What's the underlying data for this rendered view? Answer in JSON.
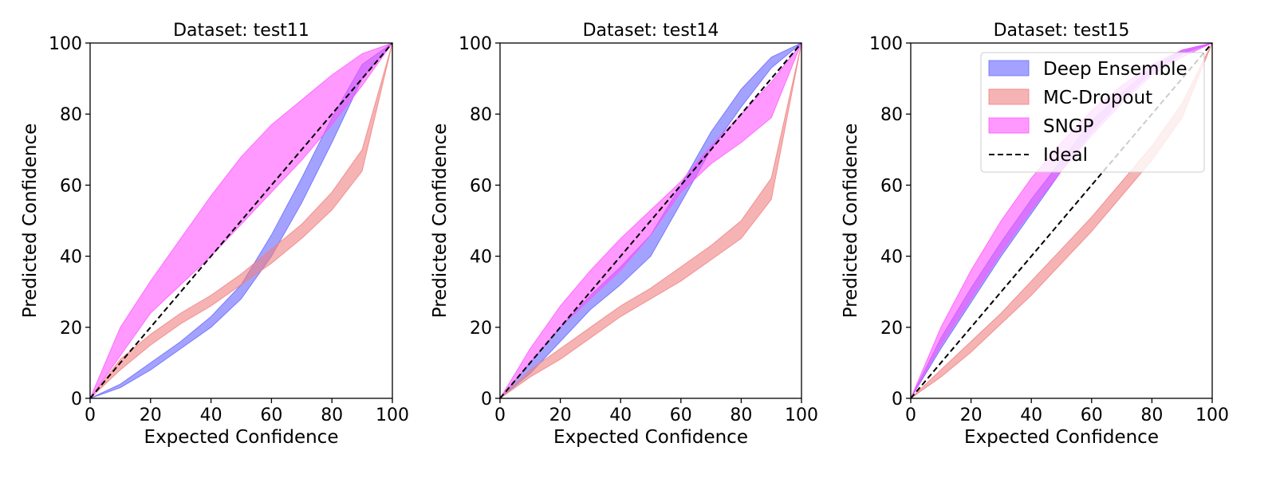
{
  "chart_data": [
    {
      "type": "area",
      "title": "Dataset: test11",
      "xlabel": "Expected Confidence",
      "ylabel": "Predicted Confidence",
      "xlim": [
        0,
        100
      ],
      "ylim": [
        0,
        100
      ],
      "xticks": [
        "0",
        "20",
        "40",
        "60",
        "80",
        "100"
      ],
      "yticks": [
        "0",
        "20",
        "40",
        "60",
        "80",
        "100"
      ],
      "grid": false,
      "legend": false,
      "x": [
        0,
        10,
        20,
        30,
        40,
        50,
        60,
        70,
        80,
        90,
        100
      ],
      "series": [
        {
          "name": "Deep Ensemble",
          "color": "#6666ff",
          "lower": [
            0,
            3,
            8,
            14,
            20,
            28,
            40,
            55,
            72,
            90,
            100
          ],
          "upper": [
            0,
            4,
            10,
            16,
            23,
            32,
            46,
            62,
            79,
            94,
            100
          ]
        },
        {
          "name": "MC-Dropout",
          "color": "#f08080",
          "lower": [
            0,
            8,
            15,
            21,
            26,
            32,
            38,
            45,
            53,
            64,
            100
          ],
          "upper": [
            0,
            11,
            18,
            24,
            29,
            35,
            42,
            49,
            58,
            70,
            100
          ]
        },
        {
          "name": "SNGP",
          "color": "#ff55ff",
          "lower": [
            0,
            12,
            24,
            32,
            40,
            49,
            58,
            67,
            77,
            88,
            100
          ],
          "upper": [
            0,
            20,
            33,
            45,
            57,
            68,
            77,
            84,
            91,
            97,
            100
          ]
        }
      ],
      "ideal": {
        "name": "Ideal",
        "x": [
          0,
          100
        ],
        "y": [
          0,
          100
        ]
      }
    },
    {
      "type": "area",
      "title": "Dataset: test14",
      "xlabel": "Expected Confidence",
      "ylabel": "Predicted Confidence",
      "xlim": [
        0,
        100
      ],
      "ylim": [
        0,
        100
      ],
      "xticks": [
        "0",
        "20",
        "40",
        "60",
        "80",
        "100"
      ],
      "yticks": [
        "0",
        "20",
        "40",
        "60",
        "80",
        "100"
      ],
      "grid": false,
      "legend": false,
      "x": [
        0,
        10,
        20,
        30,
        40,
        50,
        60,
        70,
        80,
        90,
        100
      ],
      "series": [
        {
          "name": "Deep Ensemble",
          "color": "#6666ff",
          "lower": [
            0,
            7,
            16,
            25,
            32,
            40,
            55,
            70,
            82,
            93,
            100
          ],
          "upper": [
            0,
            10,
            20,
            29,
            37,
            46,
            60,
            75,
            87,
            96,
            100
          ]
        },
        {
          "name": "MC-Dropout",
          "color": "#f08080",
          "lower": [
            0,
            6,
            11,
            17,
            23,
            28,
            33,
            39,
            45,
            56,
            100
          ],
          "upper": [
            0,
            8,
            14,
            20,
            26,
            31,
            37,
            43,
            50,
            62,
            100
          ]
        },
        {
          "name": "SNGP",
          "color": "#ff55ff",
          "lower": [
            0,
            10,
            20,
            28,
            36,
            46,
            58,
            66,
            72,
            79,
            100
          ],
          "upper": [
            0,
            14,
            26,
            36,
            45,
            53,
            61,
            71,
            80,
            89,
            100
          ]
        }
      ],
      "ideal": {
        "name": "Ideal",
        "x": [
          0,
          100
        ],
        "y": [
          0,
          100
        ]
      }
    },
    {
      "type": "area",
      "title": "Dataset: test15",
      "xlabel": "Expected Confidence",
      "ylabel": "Predicted Confidence",
      "xlim": [
        0,
        100
      ],
      "ylim": [
        0,
        100
      ],
      "xticks": [
        "0",
        "20",
        "40",
        "60",
        "80",
        "100"
      ],
      "yticks": [
        "0",
        "20",
        "40",
        "60",
        "80",
        "100"
      ],
      "grid": false,
      "legend": true,
      "legend_position": "top-right",
      "x": [
        0,
        10,
        20,
        30,
        40,
        50,
        60,
        70,
        80,
        90,
        100
      ],
      "series": [
        {
          "name": "Deep Ensemble",
          "color": "#6666ff",
          "lower": [
            0,
            14,
            27,
            40,
            52,
            64,
            75,
            84,
            92,
            97,
            100
          ],
          "upper": [
            0,
            17,
            31,
            44,
            56,
            67,
            78,
            86,
            93,
            98,
            100
          ]
        },
        {
          "name": "MC-Dropout",
          "color": "#f08080",
          "lower": [
            0,
            6,
            13,
            21,
            29,
            38,
            47,
            57,
            67,
            79,
            100
          ],
          "upper": [
            0,
            8,
            16,
            24,
            33,
            42,
            51,
            61,
            71,
            83,
            100
          ]
        },
        {
          "name": "SNGP",
          "color": "#ff55ff",
          "lower": [
            0,
            15,
            28,
            41,
            53,
            64,
            74,
            83,
            91,
            96,
            100
          ],
          "upper": [
            0,
            20,
            36,
            50,
            62,
            72,
            81,
            88,
            94,
            98,
            100
          ]
        }
      ],
      "ideal": {
        "name": "Ideal",
        "x": [
          0,
          100
        ],
        "y": [
          0,
          100
        ]
      }
    }
  ]
}
